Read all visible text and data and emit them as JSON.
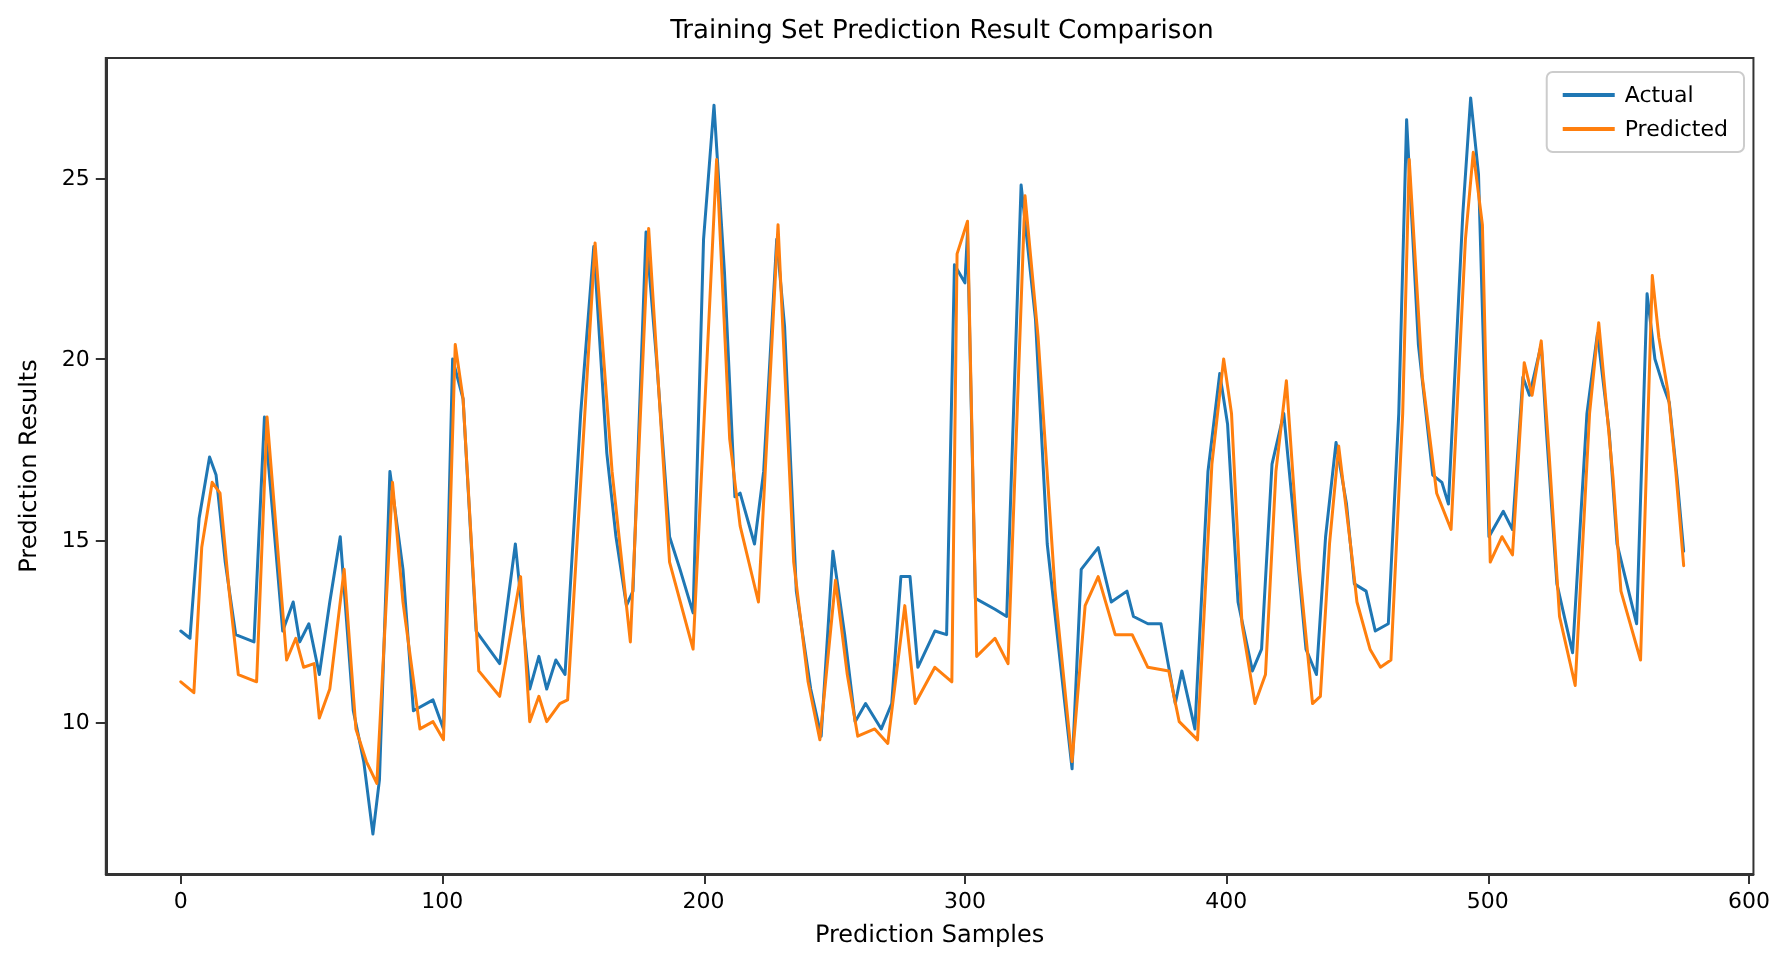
{
  "chart_data": {
    "type": "line",
    "title": "Training Set Prediction Result Comparison",
    "xlabel": "Prediction Samples",
    "ylabel": "Prediction Results",
    "xlim": [
      -28.7,
      601.7
    ],
    "ylim": [
      5.8,
      28.3
    ],
    "xticks": [
      0,
      100,
      200,
      300,
      400,
      500,
      600
    ],
    "yticks": [
      10,
      15,
      20,
      25
    ],
    "legend": "top right",
    "series": [
      {
        "name": "Actual",
        "color": "#1f77b4",
        "x": [
          0,
          3.5,
          7,
          11,
          13.5,
          17,
          21,
          28,
          32,
          39,
          43,
          45.5,
          49,
          53,
          57,
          61,
          66,
          70,
          73.5,
          76,
          80,
          85,
          89,
          96.5,
          100.5,
          104,
          108,
          113,
          122,
          128,
          133.5,
          137,
          140,
          143.5,
          147,
          153,
          158,
          163,
          166.5,
          170.5,
          173,
          178,
          182,
          187,
          191,
          196,
          200,
          204,
          208,
          212,
          214,
          219.5,
          223,
          228,
          231,
          235.5,
          241,
          245,
          249.5,
          254,
          258,
          262,
          268,
          272,
          275.5,
          279,
          282,
          288.5,
          293,
          296,
          300,
          301,
          304,
          311.5,
          316,
          321.5,
          327,
          331.5,
          337,
          341,
          344.5,
          351,
          356,
          362,
          364.5,
          370,
          375,
          380.5,
          383,
          388,
          393,
          397.5,
          400.5,
          404.5,
          410,
          413.5,
          417.5,
          422,
          426.5,
          430.5,
          434.5,
          438,
          442,
          446,
          449,
          453.5,
          457,
          462,
          466,
          469,
          473.5,
          479,
          482.5,
          485,
          490.5,
          493.5,
          496.5,
          500.5,
          506,
          509.5,
          513.5,
          516,
          520.5,
          522.5,
          526.5,
          532.5,
          538,
          542,
          546.5,
          549.5,
          557,
          561,
          564,
          567,
          569.5,
          572.5,
          575
        ],
        "values": [
          12.5,
          12.3,
          15.6,
          17.3,
          16.8,
          14.4,
          12.4,
          12.2,
          18.4,
          12.5,
          13.3,
          12.2,
          12.7,
          11.3,
          13.3,
          15.1,
          10.3,
          8.9,
          6.9,
          8.4,
          16.9,
          14.2,
          10.3,
          10.6,
          9.8,
          20.0,
          18.9,
          12.5,
          11.6,
          14.9,
          10.9,
          11.8,
          10.9,
          11.7,
          11.3,
          18.5,
          23.1,
          17.4,
          15.1,
          13.2,
          13.6,
          23.5,
          20.0,
          15.1,
          14.2,
          13.0,
          23.3,
          27.0,
          22.4,
          16.2,
          16.3,
          14.9,
          16.9,
          23.3,
          20.9,
          13.6,
          10.9,
          9.6,
          14.7,
          12.4,
          10.0,
          10.5,
          9.8,
          10.5,
          14.0,
          14.0,
          11.5,
          12.5,
          12.4,
          22.6,
          22.1,
          23.5,
          13.4,
          13.1,
          12.9,
          24.8,
          21.1,
          14.9,
          11.3,
          8.7,
          14.2,
          14.8,
          13.3,
          13.6,
          12.9,
          12.7,
          12.7,
          10.5,
          11.4,
          9.8,
          16.9,
          19.6,
          18.2,
          13.3,
          11.4,
          12.0,
          17.1,
          18.5,
          15.1,
          12.0,
          11.3,
          15.1,
          17.7,
          16.0,
          13.8,
          13.6,
          12.5,
          12.7,
          18.5,
          26.6,
          20.4,
          16.8,
          16.6,
          16.0,
          24.0,
          27.2,
          25.1,
          15.1,
          15.8,
          15.3,
          19.5,
          19.0,
          20.4,
          18.0,
          13.8,
          11.9,
          18.5,
          20.7,
          18.0,
          14.9,
          12.7,
          21.8,
          20.0,
          19.3,
          18.8,
          16.7,
          14.7
        ]
      },
      {
        "name": "Predicted",
        "color": "#ff7f0e",
        "x": [
          0,
          5,
          8,
          12,
          15,
          18.5,
          22,
          29,
          33,
          40.5,
          44,
          47,
          51,
          53,
          57,
          62.5,
          67,
          71,
          75,
          81,
          85,
          91.5,
          96.5,
          100.5,
          105,
          108,
          114,
          122,
          130,
          133.5,
          137,
          140,
          145,
          148,
          158.5,
          165,
          172,
          179,
          187,
          196,
          205,
          210,
          214,
          221,
          228.5,
          234.5,
          240,
          244.5,
          250.5,
          255,
          259,
          265.5,
          270.5,
          277,
          281,
          288.5,
          295,
          297,
          301,
          304.5,
          311.5,
          316.5,
          323,
          328,
          334.5,
          341,
          346,
          351,
          357.5,
          364,
          370,
          378,
          382,
          389,
          394.5,
          399,
          402,
          406,
          411,
          415,
          419,
          423,
          428,
          433,
          436,
          439.5,
          443,
          448,
          450,
          455,
          459,
          463,
          467.5,
          470,
          475,
          480.5,
          486,
          491.5,
          494.5,
          498,
          501,
          505.5,
          509.5,
          514,
          517,
          520.5,
          523.5,
          527.5,
          533.5,
          539,
          542.5,
          548,
          551,
          558.5,
          563,
          565.5,
          569,
          572,
          575
        ],
        "values": [
          11.1,
          10.8,
          14.8,
          16.6,
          16.3,
          13.6,
          11.3,
          11.1,
          18.4,
          11.7,
          12.3,
          11.5,
          11.6,
          10.1,
          10.9,
          14.2,
          9.8,
          8.9,
          8.3,
          16.6,
          13.3,
          9.8,
          10.0,
          9.5,
          20.4,
          18.9,
          11.4,
          10.7,
          14.0,
          10.0,
          10.7,
          10.0,
          10.5,
          10.6,
          23.2,
          16.9,
          12.2,
          23.6,
          14.4,
          12.0,
          25.5,
          17.8,
          15.4,
          13.3,
          23.7,
          14.4,
          11.1,
          9.5,
          13.9,
          11.3,
          9.6,
          9.8,
          9.4,
          13.2,
          10.5,
          11.5,
          11.1,
          22.9,
          23.8,
          11.8,
          12.3,
          11.6,
          24.5,
          20.6,
          13.6,
          8.9,
          13.2,
          14.0,
          12.4,
          12.4,
          11.5,
          11.4,
          10.0,
          9.5,
          17.1,
          20.0,
          18.5,
          12.7,
          10.5,
          11.3,
          16.9,
          19.4,
          14.2,
          10.5,
          10.7,
          14.9,
          17.6,
          14.6,
          13.3,
          12.0,
          11.5,
          11.7,
          18.5,
          25.5,
          19.5,
          16.3,
          15.3,
          23.3,
          25.7,
          23.7,
          14.4,
          15.1,
          14.6,
          19.9,
          19.0,
          20.5,
          17.4,
          12.9,
          11.0,
          18.5,
          21.0,
          16.7,
          13.6,
          11.7,
          22.3,
          20.6,
          19.1,
          16.9,
          14.3
        ]
      }
    ]
  }
}
